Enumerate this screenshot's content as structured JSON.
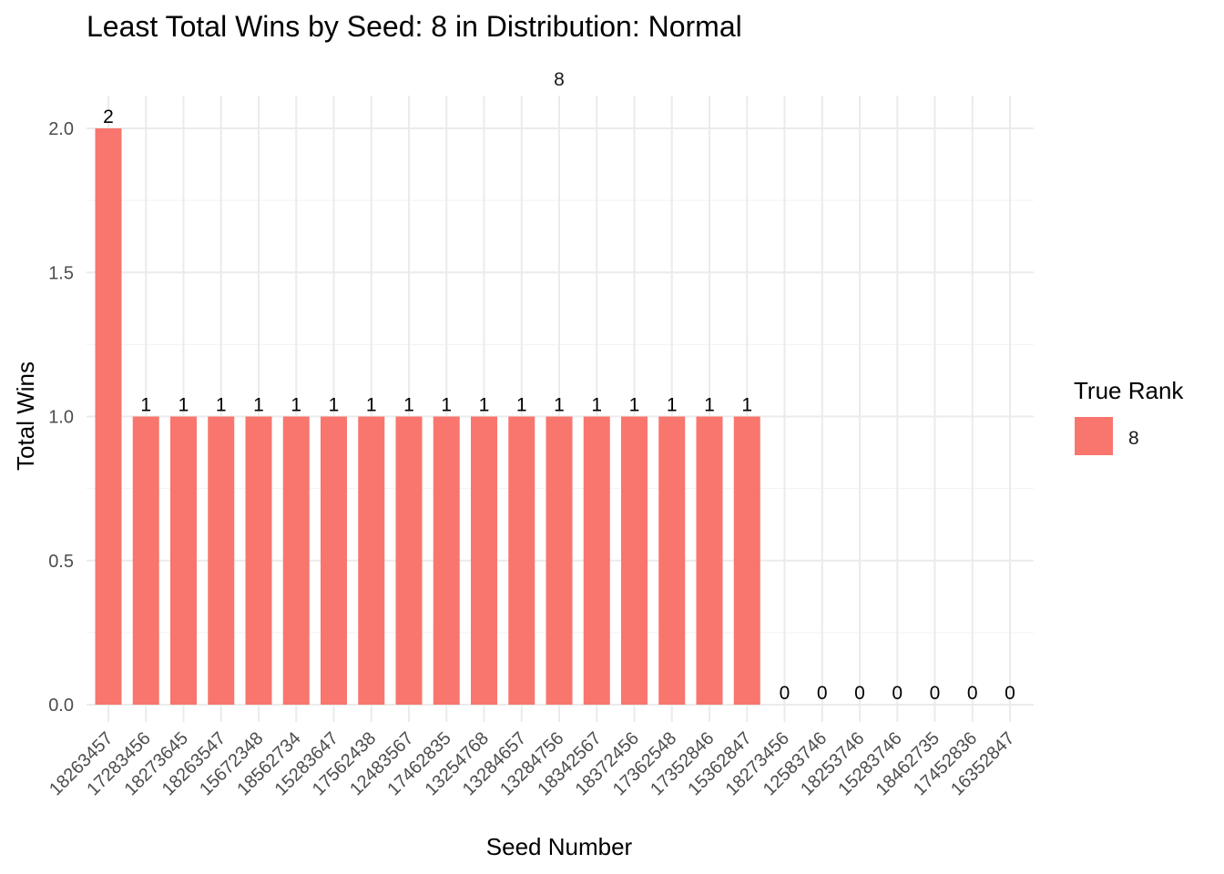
{
  "chart_data": {
    "type": "bar",
    "title": "Least Total Wins by Seed: 8 in Distribution: Normal",
    "facet_label": "8",
    "xlabel": "Seed Number",
    "ylabel": "Total Wins",
    "ylim": [
      0,
      2.0
    ],
    "y_ticks": [
      0.0,
      0.5,
      1.0,
      1.5,
      2.0
    ],
    "y_tick_labels": [
      "0.0",
      "0.5",
      "1.0",
      "1.5",
      "2.0"
    ],
    "grid": true,
    "categories": [
      "18263457",
      "17283456",
      "18273645",
      "18263547",
      "15672348",
      "18562734",
      "15283647",
      "17562438",
      "12483567",
      "17462835",
      "13254768",
      "13284657",
      "13284756",
      "18342567",
      "18372456",
      "17362548",
      "17352846",
      "15362847",
      "18273456",
      "12583746",
      "18253746",
      "15283746",
      "18462735",
      "17452836",
      "16352847"
    ],
    "series": [
      {
        "name": "8",
        "color": "#F8766D",
        "values": [
          2,
          1,
          1,
          1,
          1,
          1,
          1,
          1,
          1,
          1,
          1,
          1,
          1,
          1,
          1,
          1,
          1,
          1,
          0,
          0,
          0,
          0,
          0,
          0,
          0
        ]
      }
    ],
    "data_labels": [
      "2",
      "1",
      "1",
      "1",
      "1",
      "1",
      "1",
      "1",
      "1",
      "1",
      "1",
      "1",
      "1",
      "1",
      "1",
      "1",
      "1",
      "1",
      "0",
      "0",
      "0",
      "0",
      "0",
      "0",
      "0"
    ],
    "legend": {
      "title": "True Rank",
      "position": "right",
      "entries": [
        {
          "label": "8",
          "color": "#F8766D"
        }
      ]
    }
  }
}
